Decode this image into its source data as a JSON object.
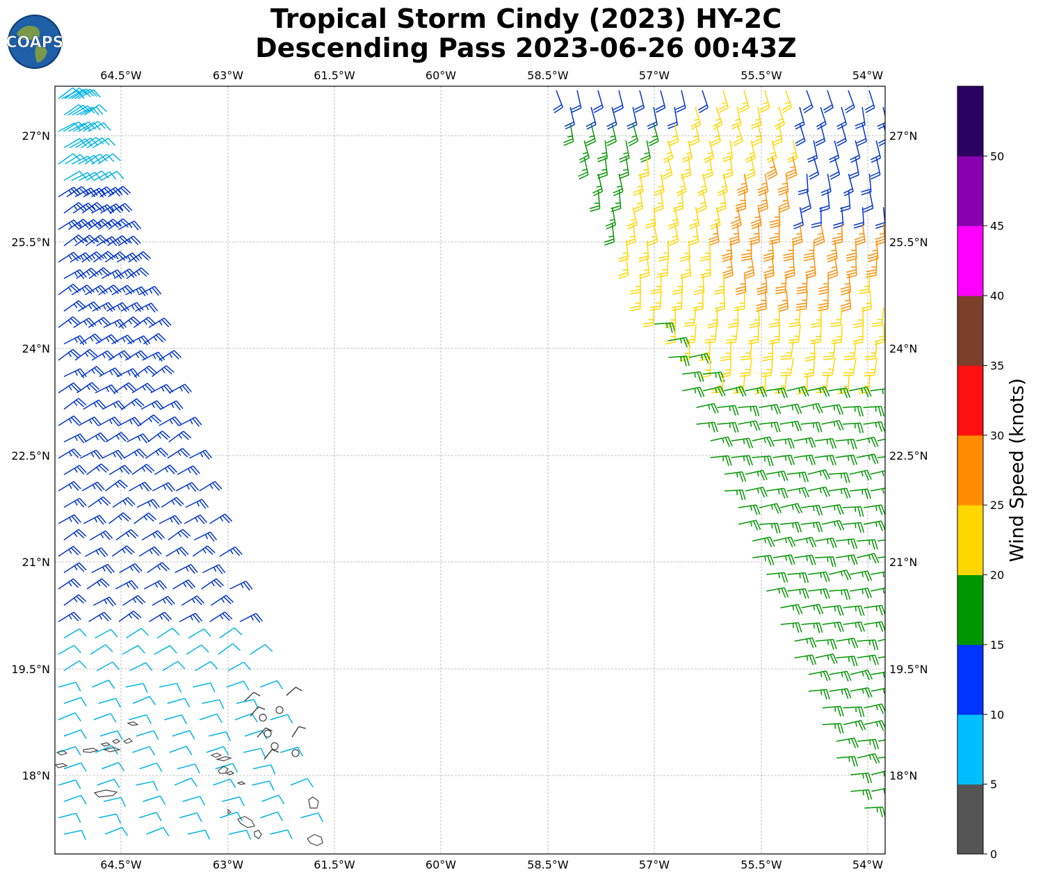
{
  "header": {
    "title_line1": "Tropical Storm Cindy (2023) HY-2C",
    "title_line2": "Descending Pass 2023-06-26 00:43Z",
    "logo_text": "COAPS"
  },
  "map": {
    "lon_ticks": [
      "64.5°W",
      "63°W",
      "61.5°W",
      "60°W",
      "58.5°W",
      "57°W",
      "55.5°W",
      "54°W"
    ],
    "lat_ticks": [
      "27°N",
      "25.5°N",
      "24°N",
      "22.5°N",
      "21°N",
      "19.5°N",
      "18°N"
    ],
    "lon_range": [
      -65.45,
      -53.75
    ],
    "lat_range": [
      16.9,
      27.7
    ],
    "grid": true,
    "wind_barbs": [
      {
        "region": "west swath",
        "speed_range_knots": [
          5,
          15
        ],
        "colors": [
          "#00bfff",
          "#0033cc"
        ]
      },
      {
        "region": "east swath",
        "speed_range_knots": [
          10,
          30
        ],
        "colors": [
          "#0033cc",
          "#009900",
          "#ffd700",
          "#ff8c00"
        ]
      },
      {
        "region": "near 62.5°W 18.5°N",
        "speed_range_knots": [
          0,
          5
        ],
        "colors": [
          "#555555"
        ]
      }
    ]
  },
  "colorbar": {
    "label": "Wind Speed (knots)",
    "ticks": [
      "0",
      "5",
      "10",
      "15",
      "20",
      "25",
      "30",
      "35",
      "40",
      "45",
      "50"
    ],
    "bins": [
      {
        "range": "0-5",
        "color": "#555555"
      },
      {
        "range": "5-10",
        "color": "#00bfff"
      },
      {
        "range": "10-15",
        "color": "#0033ff"
      },
      {
        "range": "15-20",
        "color": "#009600"
      },
      {
        "range": "20-25",
        "color": "#ffd700"
      },
      {
        "range": "25-30",
        "color": "#ff8c00"
      },
      {
        "range": "30-35",
        "color": "#ff1010"
      },
      {
        "range": "35-40",
        "color": "#7b3f2a"
      },
      {
        "range": "40-45",
        "color": "#ff00ff"
      },
      {
        "range": "45-50",
        "color": "#8800b0"
      },
      {
        "range": "50+",
        "color": "#2a0060"
      }
    ]
  }
}
